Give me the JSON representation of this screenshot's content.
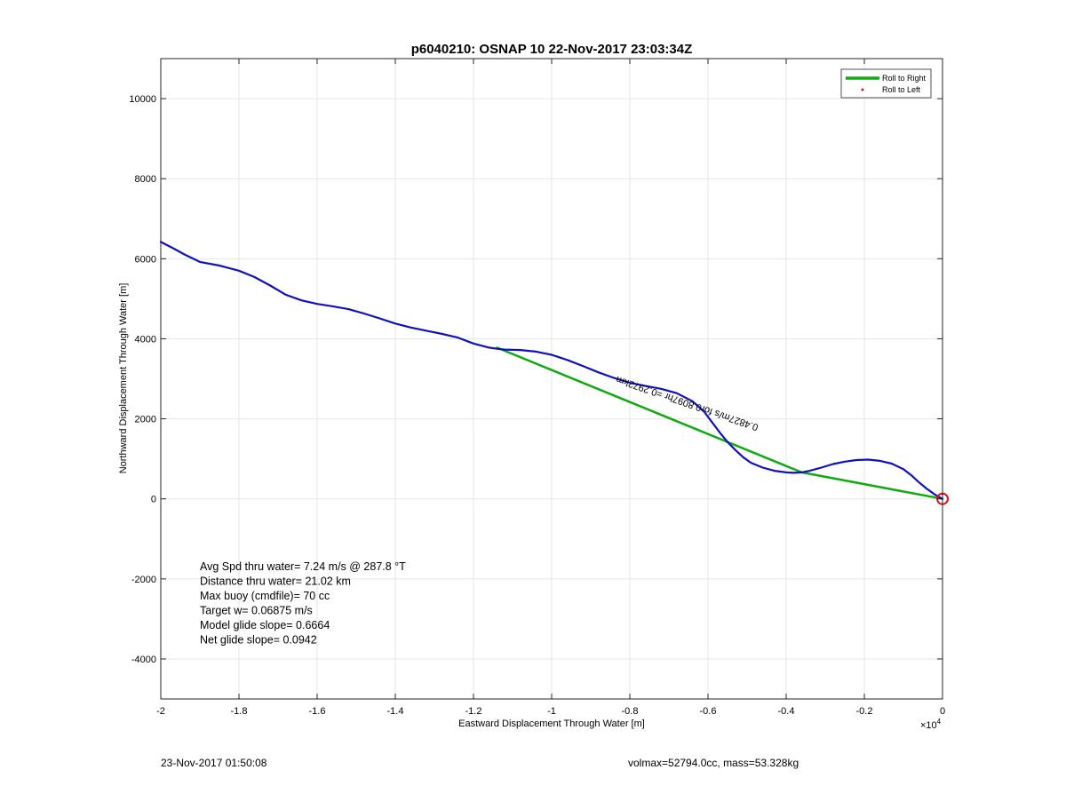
{
  "chart_data": {
    "type": "line",
    "title": "p6040210: OSNAP 10 22-Nov-2017 23:03:34Z",
    "xlabel": "Eastward Displacement Through Water [m]",
    "ylabel": "Northward Displacement Through Water [m]",
    "x_exponent_label": "×10",
    "x_exponent_power": "4",
    "xlim": [
      -2,
      0
    ],
    "ylim": [
      -5000,
      11000
    ],
    "x_ticks": [
      -2,
      -1.8,
      -1.6,
      -1.4,
      -1.2,
      -1,
      -0.8,
      -0.6,
      -0.4,
      -0.2,
      0
    ],
    "x_tick_labels": [
      "-2",
      "-1.8",
      "-1.6",
      "-1.4",
      "-1.2",
      "-1",
      "-0.8",
      "-0.6",
      "-0.4",
      "-0.2",
      "0"
    ],
    "y_ticks": [
      -4000,
      -2000,
      0,
      2000,
      4000,
      6000,
      8000,
      10000
    ],
    "y_tick_labels": [
      "-4000",
      "-2000",
      "0",
      "2000",
      "4000",
      "6000",
      "8000",
      "10000"
    ],
    "grid": true,
    "legend_position": "top-right",
    "legend": [
      {
        "label": "Roll to Right",
        "color": "#11aa11",
        "marker": "line"
      },
      {
        "label": "Roll to Left",
        "color": "#ee1111",
        "marker": "dot"
      }
    ],
    "series": [
      {
        "name": "Roll to Right",
        "color": "#11aa11",
        "x": [
          -1.14,
          -0.36,
          0
        ],
        "y": [
          3780,
          660,
          0
        ]
      },
      {
        "color": "#1111bb",
        "x": [
          -2.0,
          -1.97,
          -1.94,
          -1.9,
          -1.85,
          -1.8,
          -1.76,
          -1.72,
          -1.68,
          -1.64,
          -1.6,
          -1.56,
          -1.52,
          -1.48,
          -1.44,
          -1.4,
          -1.36,
          -1.32,
          -1.28,
          -1.24,
          -1.2,
          -1.16,
          -1.14,
          -1.12,
          -1.08,
          -1.04,
          -1.0,
          -0.96,
          -0.92,
          -0.88,
          -0.84,
          -0.8,
          -0.76,
          -0.72,
          -0.68,
          -0.64,
          -0.61,
          -0.59,
          -0.57,
          -0.55,
          -0.53,
          -0.51,
          -0.49,
          -0.46,
          -0.43,
          -0.4,
          -0.38,
          -0.36,
          -0.34,
          -0.31,
          -0.28,
          -0.25,
          -0.22,
          -0.19,
          -0.16,
          -0.13,
          -0.1,
          -0.08,
          -0.06,
          -0.04,
          -0.02,
          -0.01,
          0.0
        ],
        "y": [
          6420,
          6270,
          6110,
          5920,
          5830,
          5700,
          5540,
          5330,
          5100,
          4960,
          4870,
          4810,
          4740,
          4630,
          4510,
          4380,
          4280,
          4200,
          4120,
          4030,
          3880,
          3780,
          3750,
          3730,
          3720,
          3680,
          3600,
          3470,
          3320,
          3160,
          3020,
          2900,
          2820,
          2750,
          2640,
          2440,
          2180,
          1920,
          1660,
          1420,
          1220,
          1040,
          900,
          780,
          700,
          660,
          650,
          660,
          700,
          780,
          870,
          930,
          970,
          980,
          950,
          880,
          740,
          590,
          410,
          250,
          110,
          50,
          0
        ]
      }
    ],
    "annotations": [
      {
        "text": "0.4827m/s for0.8097hr =0.2972km",
        "x": -0.47,
        "y": 1850,
        "rotate_deg": 199
      }
    ],
    "stats_lines": [
      "Avg Spd thru water=  7.24 m/s @ 287.8 °T",
      "Distance thru water= 21.02 km",
      "Max buoy (cmdfile)= 70 cc",
      "Target w= 0.06875 m/s",
      "Model glide slope= 0.6664",
      "Net glide slope= 0.0942"
    ],
    "end_marker": {
      "x": 0,
      "y": 0,
      "color": "#dd1111"
    }
  },
  "footer": {
    "timestamp": "23-Nov-2017 01:50:08",
    "info": "volmax=52794.0cc, mass=53.328kg"
  }
}
